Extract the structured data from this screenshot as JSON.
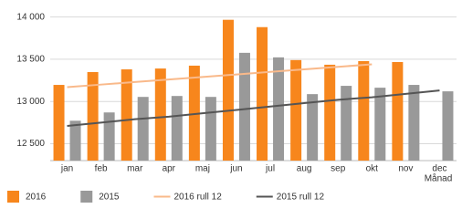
{
  "chart_data": {
    "type": "bar",
    "x_label": "Månad",
    "categories": [
      "jan",
      "feb",
      "mar",
      "apr",
      "maj",
      "jun",
      "jul",
      "aug",
      "sep",
      "okt",
      "nov",
      "dec"
    ],
    "series": [
      {
        "name": "2016",
        "type": "bar",
        "color": "#f7861c",
        "values": [
          13196,
          13348,
          13380,
          13390,
          13424,
          13967,
          13880,
          13490,
          13435,
          13478,
          13467,
          null
        ]
      },
      {
        "name": "2015",
        "type": "bar",
        "color": "#999999",
        "values": [
          12772,
          12870,
          13054,
          13065,
          13054,
          13576,
          13522,
          13087,
          13185,
          13163,
          13196,
          13120
        ]
      },
      {
        "name": "2016 rull 12",
        "type": "line",
        "color": "#f9b98a",
        "values": [
          13170,
          13200,
          13230,
          13260,
          13290,
          13320,
          13350,
          13380,
          13410,
          13440,
          null,
          null
        ]
      },
      {
        "name": "2015 rull 12",
        "type": "line",
        "color": "#555555",
        "values": [
          12710,
          12750,
          12790,
          12820,
          12860,
          12900,
          12940,
          12980,
          13020,
          13050,
          13090,
          13130
        ]
      }
    ],
    "ylim": [
      12300,
      14050
    ],
    "yticks": [
      {
        "value": 12500,
        "label": "12 500"
      },
      {
        "value": 13000,
        "label": "13 000"
      },
      {
        "value": 13500,
        "label": "13 500"
      },
      {
        "value": 14000,
        "label": "14 000"
      }
    ],
    "grid": true
  }
}
